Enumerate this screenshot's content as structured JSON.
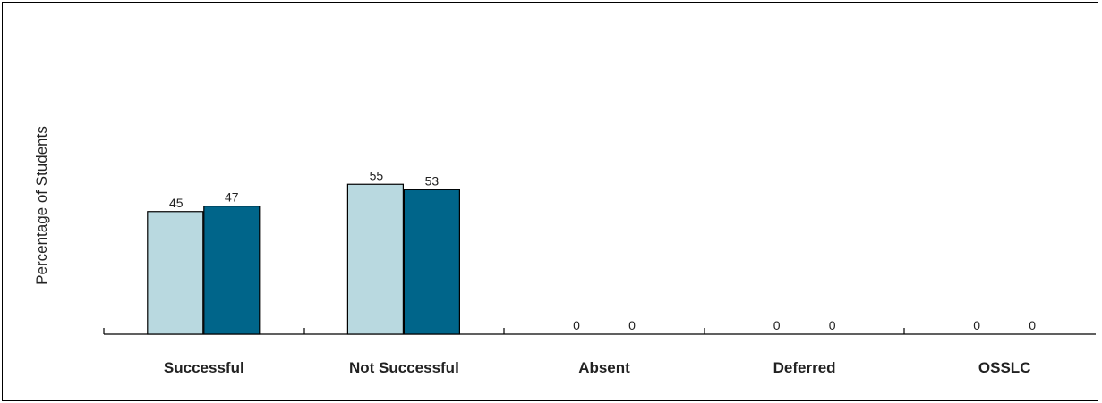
{
  "chart_data": {
    "type": "bar",
    "xlabel": "",
    "ylabel": "Percentage of Students",
    "categories": [
      "Successful",
      "Not Successful",
      "Absent",
      "Deferred",
      "OSSLC"
    ],
    "series": [
      {
        "values": [
          45,
          55,
          0,
          0,
          0
        ]
      },
      {
        "values": [
          47,
          53,
          0,
          0,
          0
        ]
      }
    ],
    "ylim": [
      0,
      100
    ],
    "grid": false,
    "colors": [
      "#b9d9e0",
      "#00658a"
    ]
  }
}
